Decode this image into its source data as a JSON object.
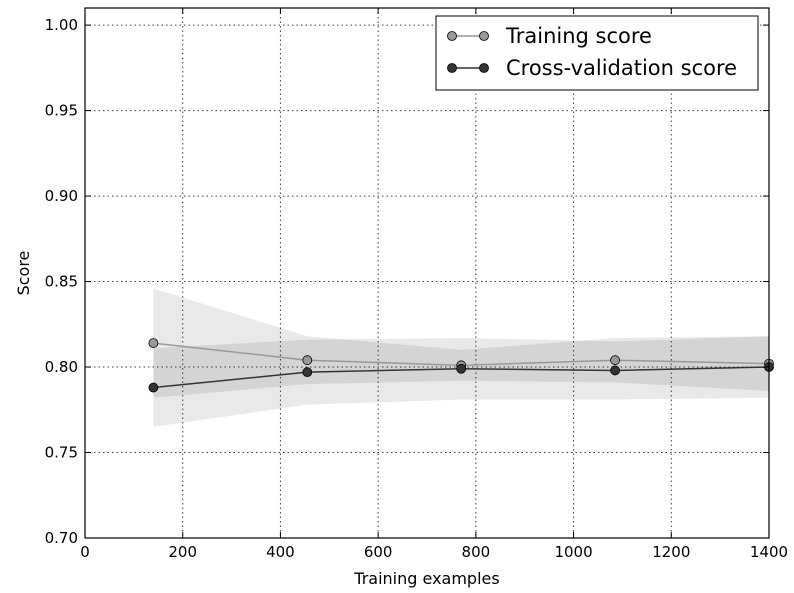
{
  "chart_data": {
    "type": "line",
    "title": "",
    "xlabel": "Training examples",
    "ylabel": "Score",
    "xlim": [
      0,
      1400
    ],
    "ylim": [
      0.7,
      1.01
    ],
    "grid": true,
    "legend_position": "top-right",
    "x_ticks": [
      0,
      200,
      400,
      600,
      800,
      1000,
      1200,
      1400
    ],
    "x_tick_labels": [
      "0",
      "200",
      "400",
      "600",
      "800",
      "1000",
      "1200",
      "1400"
    ],
    "y_ticks": [
      0.7,
      0.75,
      0.8,
      0.85,
      0.9,
      0.95,
      1.0
    ],
    "y_tick_labels": [
      "0.70",
      "0.75",
      "0.80",
      "0.85",
      "0.90",
      "0.95",
      "1.00"
    ],
    "x": [
      140,
      455,
      770,
      1085,
      1400
    ],
    "series": [
      {
        "name": "Training score",
        "color": "#999999",
        "values": [
          0.814,
          0.804,
          0.801,
          0.804,
          0.802
        ],
        "band_lower": [
          0.782,
          0.79,
          0.792,
          0.791,
          0.786
        ],
        "band_upper": [
          0.846,
          0.818,
          0.81,
          0.817,
          0.818
        ]
      },
      {
        "name": "Cross-validation score",
        "color": "#333333",
        "values": [
          0.788,
          0.797,
          0.799,
          0.798,
          0.8
        ],
        "band_lower": [
          0.765,
          0.778,
          0.781,
          0.781,
          0.782
        ],
        "band_upper": [
          0.811,
          0.816,
          0.817,
          0.815,
          0.818
        ]
      }
    ]
  }
}
